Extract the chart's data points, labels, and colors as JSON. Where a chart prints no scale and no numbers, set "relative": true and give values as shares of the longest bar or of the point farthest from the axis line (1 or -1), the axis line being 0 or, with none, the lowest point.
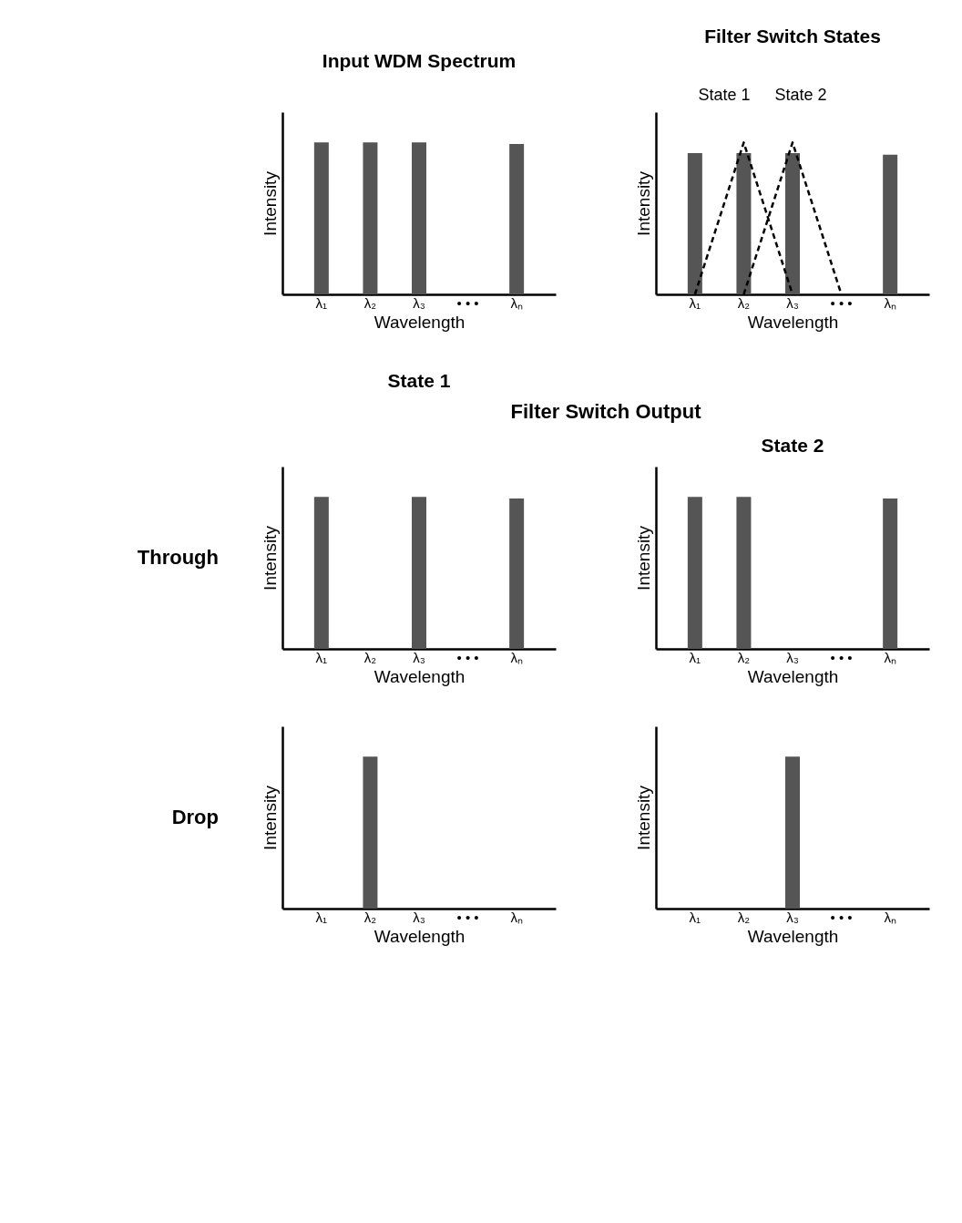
{
  "chart_data": [
    {
      "type": "bar",
      "title": "Input WDM Spectrum",
      "xlabel": "Wavelength",
      "ylabel": "Intensity",
      "relative": true,
      "categories": [
        "λ₁",
        "λ₂",
        "λ₃",
        "• • •",
        "λₙ"
      ],
      "series": [
        {
          "color": "#555555",
          "values": [
            1,
            1,
            1,
            null,
            0.99
          ]
        }
      ]
    },
    {
      "type": "bar",
      "title": "Filter Switch States",
      "xlabel": "Wavelength",
      "ylabel": "Intensity",
      "relative": true,
      "categories": [
        "λ₁",
        "λ₂",
        "λ₃",
        "• • •",
        "λₙ"
      ],
      "annotations": [
        "State 1",
        "State 2"
      ],
      "series": [
        {
          "color": "#555555",
          "values": [
            0.93,
            0.93,
            0.93,
            null,
            0.92
          ]
        },
        {
          "type": "line",
          "line_style": "dashed",
          "color": "#000000",
          "values": [
            0,
            1,
            0,
            null,
            null
          ]
        },
        {
          "type": "line",
          "line_style": "dashed",
          "color": "#000000",
          "values": [
            null,
            0,
            1,
            0,
            null
          ]
        }
      ]
    },
    {
      "type": "bar",
      "title": "State 1",
      "xlabel": "Wavelength",
      "ylabel": "Intensity",
      "relative": true,
      "categories": [
        "λ₁",
        "λ₂",
        "λ₃",
        "• • •",
        "λₙ"
      ],
      "annotations": [
        "Filter Switch Output",
        "Through"
      ],
      "series": [
        {
          "color": "#555555",
          "values": [
            1,
            null,
            1,
            null,
            0.99
          ]
        }
      ]
    },
    {
      "type": "bar",
      "title": "State 2",
      "xlabel": "Wavelength",
      "ylabel": "Intensity",
      "relative": true,
      "categories": [
        "λ₁",
        "λ₂",
        "λ₃",
        "• • •",
        "λₙ"
      ],
      "series": [
        {
          "color": "#555555",
          "values": [
            1,
            1,
            null,
            null,
            0.99
          ]
        }
      ]
    },
    {
      "type": "bar",
      "xlabel": "Wavelength",
      "ylabel": "Intensity",
      "relative": true,
      "categories": [
        "λ₁",
        "λ₂",
        "λ₃",
        "• • •",
        "λₙ"
      ],
      "annotations": [
        "Drop"
      ],
      "series": [
        {
          "color": "#555555",
          "values": [
            null,
            1,
            null,
            null,
            null
          ]
        }
      ]
    },
    {
      "type": "bar",
      "xlabel": "Wavelength",
      "ylabel": "Intensity",
      "relative": true,
      "categories": [
        "λ₁",
        "λ₂",
        "λ₃",
        "• • •",
        "λₙ"
      ],
      "series": [
        {
          "color": "#555555",
          "values": [
            null,
            null,
            1,
            null,
            null
          ]
        }
      ]
    }
  ]
}
